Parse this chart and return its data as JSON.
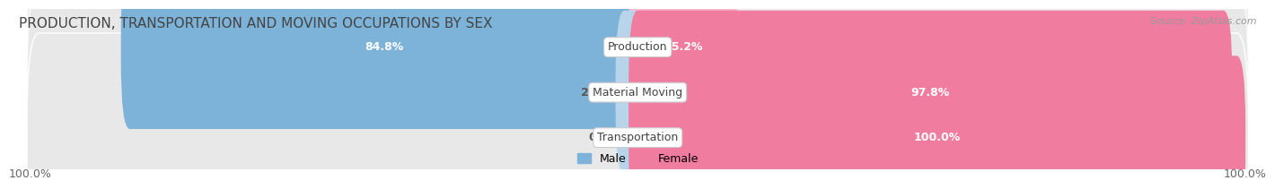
{
  "title": "PRODUCTION, TRANSPORTATION AND MOVING OCCUPATIONS BY SEX",
  "source": "Source: ZipAtlas.com",
  "categories": [
    "Production",
    "Material Moving",
    "Transportation"
  ],
  "male_pct": [
    84.8,
    2.2,
    0.0
  ],
  "female_pct": [
    15.2,
    97.8,
    100.0
  ],
  "male_color": "#7db3d8",
  "female_color": "#f07ca0",
  "male_light_color": "#b8d4ea",
  "female_light_color": "#f9b8cc",
  "bar_bg_color": "#e8e8e8",
  "male_legend_color": "#7db3d8",
  "female_legend_color": "#f07ca0",
  "title_fontsize": 11,
  "source_fontsize": 8,
  "pct_fontsize": 9,
  "category_fontsize": 9,
  "legend_fontsize": 9,
  "axis_tick_fontsize": 9
}
